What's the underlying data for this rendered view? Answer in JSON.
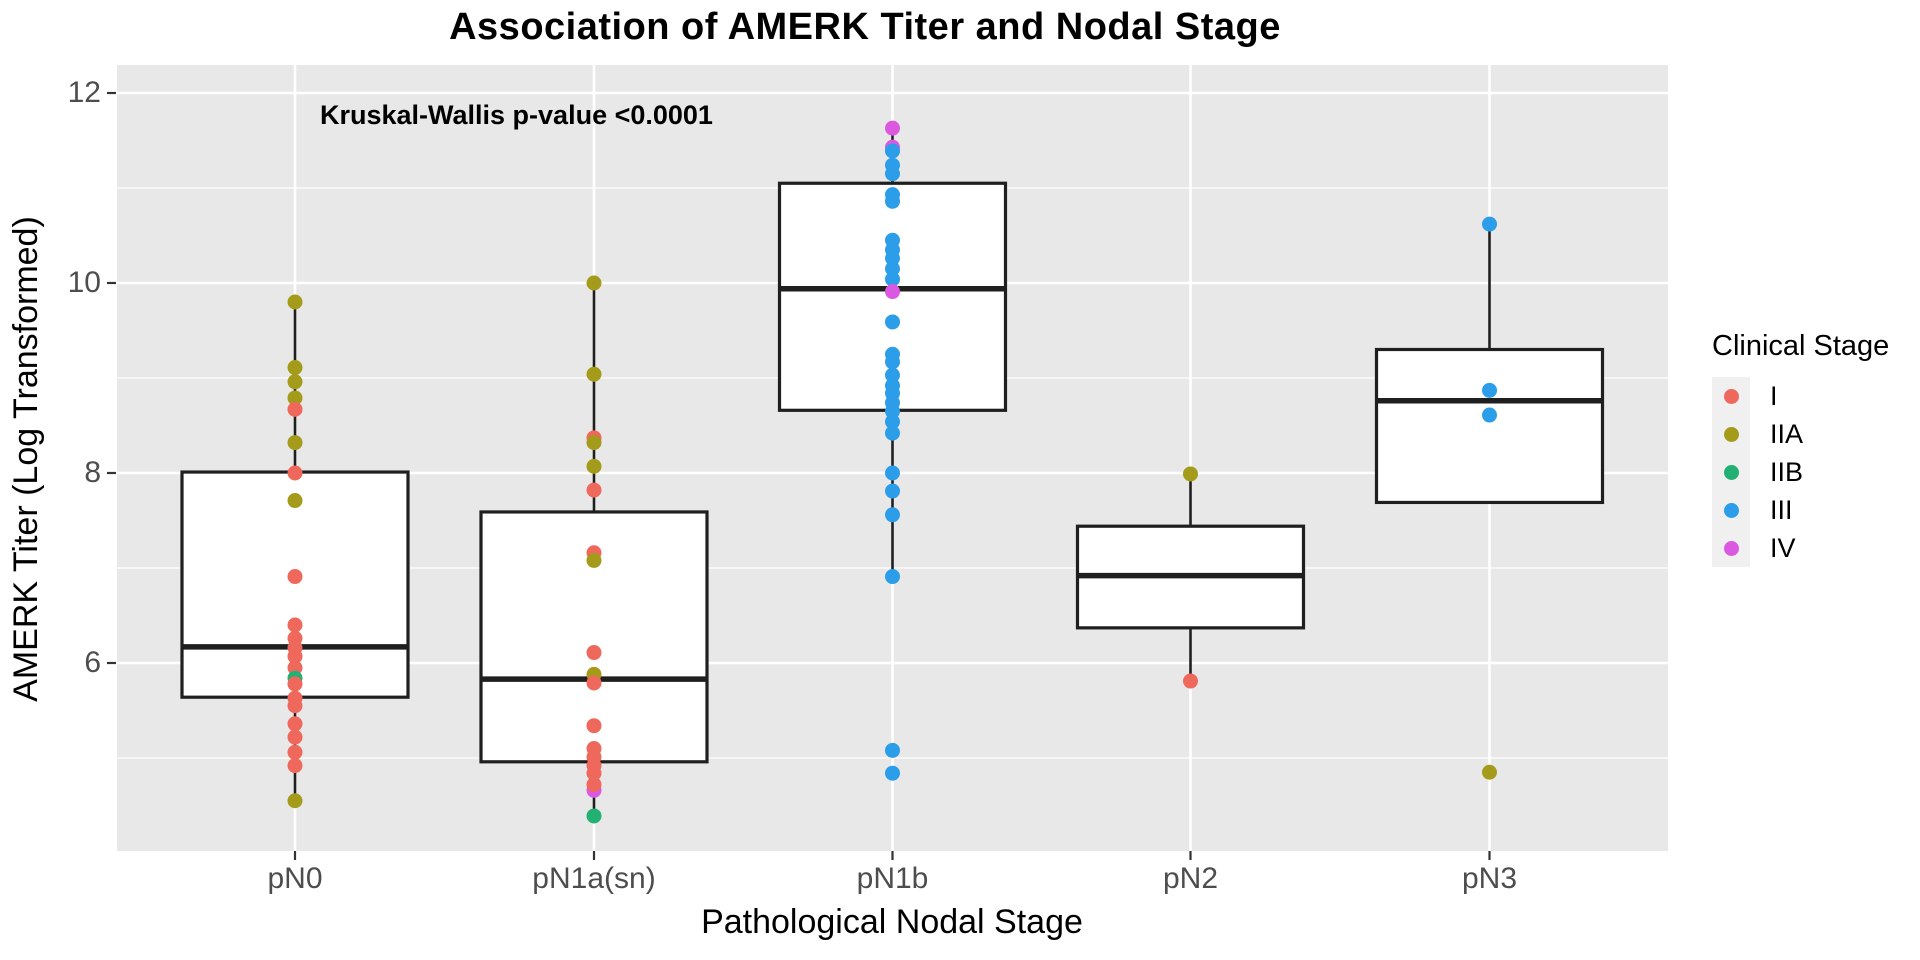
{
  "figure": {
    "title": "Association of AMERK Titer and Nodal Stage",
    "annotation": "Kruskal-Wallis p-value <0.0001",
    "x_axis_title": "Pathological Nodal Stage",
    "y_axis_title": "AMERK Titer (Log Transformed)"
  },
  "legend": {
    "title": "Clinical Stage",
    "items": [
      {
        "label": "I",
        "color": "#EF685C"
      },
      {
        "label": "IIA",
        "color": "#A49B1A"
      },
      {
        "label": "IIB",
        "color": "#23B173"
      },
      {
        "label": "III",
        "color": "#2B9DE9"
      },
      {
        "label": "IV",
        "color": "#DB59E1"
      }
    ]
  },
  "chart_data": {
    "type": "boxplot",
    "title": "Association of AMERK Titer and Nodal Stage",
    "xlabel": "Pathological Nodal Stage",
    "ylabel": "AMERK Titer (Log Transformed)",
    "annotation": "Kruskal-Wallis p-value <0.0001",
    "legend_position": "right",
    "grid": true,
    "categories": [
      "pN0",
      "pN1a(sn)",
      "pN1b",
      "pN2",
      "pN3"
    ],
    "y_ticks": [
      12,
      10,
      8,
      6
    ],
    "y_minor_ticks": [
      11,
      9,
      7,
      5
    ],
    "ylim": [
      4.0,
      12.3
    ],
    "stage_colors": {
      "I": "#EF685C",
      "IIA": "#A49B1A",
      "IIB": "#23B173",
      "III": "#2B9DE9",
      "IV": "#DB59E1"
    },
    "boxes": [
      {
        "category": "pN0",
        "whisker_low": 4.55,
        "q1": 5.64,
        "median": 6.17,
        "q3": 8.01,
        "whisker_high": 9.8,
        "points": [
          {
            "stage": "IIA",
            "v": 9.8
          },
          {
            "stage": "IIA",
            "v": 9.11
          },
          {
            "stage": "IIA",
            "v": 8.96
          },
          {
            "stage": "IIA",
            "v": 8.79
          },
          {
            "stage": "I",
            "v": 8.67
          },
          {
            "stage": "IIA",
            "v": 8.32
          },
          {
            "stage": "I",
            "v": 8.0
          },
          {
            "stage": "IIA",
            "v": 7.71
          },
          {
            "stage": "I",
            "v": 6.91
          },
          {
            "stage": "I",
            "v": 6.4
          },
          {
            "stage": "I",
            "v": 6.26
          },
          {
            "stage": "I",
            "v": 6.16
          },
          {
            "stage": "I",
            "v": 6.07
          },
          {
            "stage": "I",
            "v": 5.95
          },
          {
            "stage": "IIB",
            "v": 5.84
          },
          {
            "stage": "I",
            "v": 5.78
          },
          {
            "stage": "I",
            "v": 5.63
          },
          {
            "stage": "I",
            "v": 5.55
          },
          {
            "stage": "I",
            "v": 5.36
          },
          {
            "stage": "I",
            "v": 5.22
          },
          {
            "stage": "I",
            "v": 5.06
          },
          {
            "stage": "I",
            "v": 4.92
          },
          {
            "stage": "IIA",
            "v": 4.55
          }
        ]
      },
      {
        "category": "pN1a(sn)",
        "whisker_low": 4.39,
        "q1": 4.96,
        "median": 5.83,
        "q3": 7.59,
        "whisker_high": 10.0,
        "points": [
          {
            "stage": "IIA",
            "v": 10.0
          },
          {
            "stage": "IIA",
            "v": 9.04
          },
          {
            "stage": "I",
            "v": 8.37
          },
          {
            "stage": "IIA",
            "v": 8.32
          },
          {
            "stage": "IIA",
            "v": 8.07
          },
          {
            "stage": "I",
            "v": 7.82
          },
          {
            "stage": "I",
            "v": 7.16
          },
          {
            "stage": "IIA",
            "v": 7.08
          },
          {
            "stage": "I",
            "v": 6.11
          },
          {
            "stage": "IIA",
            "v": 5.88
          },
          {
            "stage": "I",
            "v": 5.79
          },
          {
            "stage": "I",
            "v": 5.34
          },
          {
            "stage": "I",
            "v": 5.1
          },
          {
            "stage": "I",
            "v": 5.01
          },
          {
            "stage": "I",
            "v": 4.92
          },
          {
            "stage": "I",
            "v": 4.84
          },
          {
            "stage": "IV",
            "v": 4.66
          },
          {
            "stage": "I",
            "v": 4.72
          },
          {
            "stage": "IIB",
            "v": 4.39
          }
        ]
      },
      {
        "category": "pN1b",
        "whisker_low": 6.95,
        "q1": 8.66,
        "median": 9.94,
        "q3": 11.05,
        "whisker_high": 11.63,
        "points": [
          {
            "stage": "IV",
            "v": 11.63
          },
          {
            "stage": "IV",
            "v": 11.43
          },
          {
            "stage": "III",
            "v": 11.39
          },
          {
            "stage": "III",
            "v": 11.24
          },
          {
            "stage": "III",
            "v": 11.15
          },
          {
            "stage": "III",
            "v": 10.93
          },
          {
            "stage": "III",
            "v": 10.86
          },
          {
            "stage": "III",
            "v": 10.45
          },
          {
            "stage": "III",
            "v": 10.35
          },
          {
            "stage": "III",
            "v": 10.26
          },
          {
            "stage": "III",
            "v": 10.15
          },
          {
            "stage": "III",
            "v": 10.04
          },
          {
            "stage": "IV",
            "v": 9.91
          },
          {
            "stage": "III",
            "v": 9.59
          },
          {
            "stage": "III",
            "v": 9.25
          },
          {
            "stage": "III",
            "v": 9.17
          },
          {
            "stage": "III",
            "v": 9.03
          },
          {
            "stage": "III",
            "v": 8.92
          },
          {
            "stage": "III",
            "v": 8.84
          },
          {
            "stage": "III",
            "v": 8.74
          },
          {
            "stage": "III",
            "v": 8.65
          },
          {
            "stage": "III",
            "v": 8.54
          },
          {
            "stage": "III",
            "v": 8.42
          },
          {
            "stage": "III",
            "v": 8.0
          },
          {
            "stage": "III",
            "v": 7.81
          },
          {
            "stage": "III",
            "v": 7.56
          },
          {
            "stage": "III",
            "v": 6.91
          },
          {
            "stage": "III",
            "v": 5.08
          },
          {
            "stage": "III",
            "v": 4.84
          }
        ]
      },
      {
        "category": "pN2",
        "whisker_low": 5.81,
        "q1": 6.37,
        "median": 6.92,
        "q3": 7.44,
        "whisker_high": 7.99,
        "points": [
          {
            "stage": "IIA",
            "v": 7.99
          },
          {
            "stage": "I",
            "v": 5.81
          }
        ]
      },
      {
        "category": "pN3",
        "whisker_low": null,
        "q1": 7.69,
        "median": 8.76,
        "q3": 9.3,
        "whisker_high": 10.62,
        "points": [
          {
            "stage": "III",
            "v": 10.62
          },
          {
            "stage": "III",
            "v": 8.87
          },
          {
            "stage": "III",
            "v": 8.61
          },
          {
            "stage": "IIA",
            "v": 4.85
          }
        ]
      }
    ]
  }
}
